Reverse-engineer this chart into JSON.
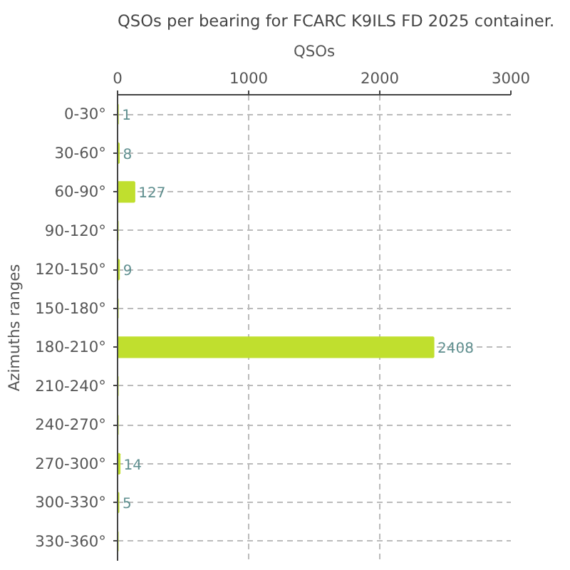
{
  "chart_data": {
    "type": "bar",
    "orientation": "horizontal",
    "title": "QSOs per bearing for FCARC K9ILS FD 2025 container.",
    "xlabel": "QSOs",
    "ylabel": "Azimuths ranges",
    "categories": [
      "0-30°",
      "30-60°",
      "60-90°",
      "90-120°",
      "120-150°",
      "150-180°",
      "180-210°",
      "210-240°",
      "240-270°",
      "270-300°",
      "300-330°",
      "330-360°"
    ],
    "values": [
      1,
      8,
      127,
      0,
      9,
      0,
      2408,
      0,
      0,
      14,
      5,
      0
    ],
    "value_labels": [
      "1",
      "8",
      "127",
      null,
      "9",
      null,
      "2408",
      null,
      null,
      "14",
      "5",
      null
    ],
    "color": "#c0df2e",
    "xlim": [
      0,
      3000
    ],
    "xticks": [
      0,
      1000,
      2000,
      3000
    ],
    "grid": true
  }
}
